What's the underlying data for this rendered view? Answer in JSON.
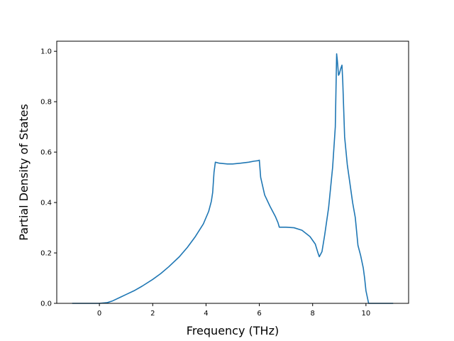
{
  "chart_data": {
    "type": "line",
    "title": "",
    "xlabel": "Frequency (THz)",
    "ylabel": "Partial Density of States",
    "xlim": [
      -1.6,
      11.6
    ],
    "ylim": [
      0.0,
      1.04
    ],
    "x_ticks": [
      0,
      2,
      4,
      6,
      8,
      10
    ],
    "x_tick_labels": [
      "0",
      "2",
      "4",
      "6",
      "8",
      "10"
    ],
    "y_ticks": [
      0.0,
      0.2,
      0.4,
      0.6,
      0.8,
      1.0
    ],
    "y_tick_labels": [
      "0.0",
      "0.2",
      "0.4",
      "0.6",
      "0.8",
      "1.0"
    ],
    "grid": false,
    "legend": "none",
    "series": [
      {
        "color": "#1f77b4",
        "x": [
          -1.0,
          0.0,
          0.3,
          0.5,
          0.8,
          1.0,
          1.3,
          1.6,
          2.0,
          2.3,
          2.6,
          3.0,
          3.3,
          3.6,
          3.9,
          4.1,
          4.2,
          4.25,
          4.3,
          4.35,
          4.5,
          4.8,
          5.0,
          5.3,
          5.6,
          5.8,
          5.95,
          6.0,
          6.05,
          6.2,
          6.4,
          6.6,
          6.7,
          6.75,
          7.0,
          7.3,
          7.6,
          7.9,
          8.1,
          8.2,
          8.25,
          8.35,
          8.45,
          8.6,
          8.75,
          8.85,
          8.9,
          8.93,
          8.97,
          9.0,
          9.05,
          9.1,
          9.13,
          9.2,
          9.3,
          9.5,
          9.6,
          9.7,
          9.8,
          9.9,
          9.95,
          10.0,
          10.1,
          11.0
        ],
        "y": [
          0.0,
          0.0,
          0.003,
          0.01,
          0.025,
          0.035,
          0.05,
          0.068,
          0.095,
          0.118,
          0.145,
          0.185,
          0.222,
          0.265,
          0.315,
          0.365,
          0.405,
          0.44,
          0.52,
          0.56,
          0.556,
          0.553,
          0.553,
          0.556,
          0.56,
          0.564,
          0.566,
          0.568,
          0.5,
          0.43,
          0.385,
          0.345,
          0.32,
          0.302,
          0.302,
          0.3,
          0.29,
          0.265,
          0.235,
          0.2,
          0.185,
          0.205,
          0.27,
          0.38,
          0.54,
          0.7,
          0.99,
          0.96,
          0.905,
          0.91,
          0.93,
          0.945,
          0.88,
          0.66,
          0.55,
          0.4,
          0.34,
          0.23,
          0.19,
          0.14,
          0.1,
          0.05,
          0.0,
          0.0
        ]
      }
    ]
  }
}
